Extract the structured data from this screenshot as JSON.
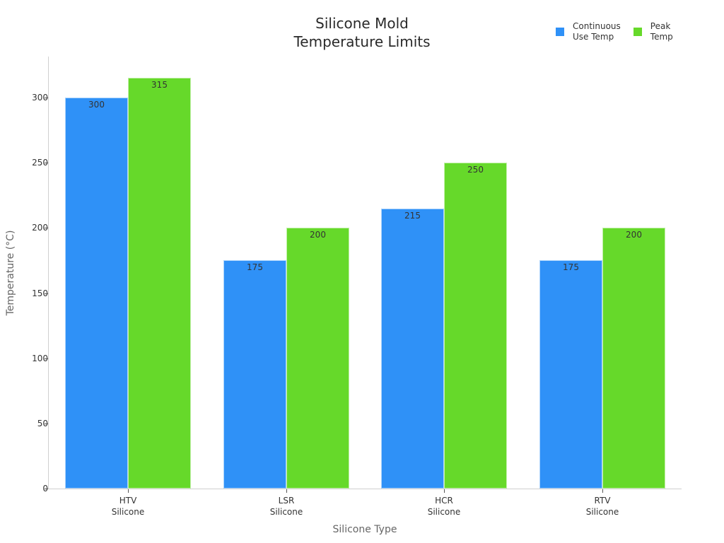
{
  "chart_data": {
    "type": "bar",
    "title": "Silicone Mold\nTemperature Limits",
    "title_lines": [
      "Silicone Mold",
      "Temperature Limits"
    ],
    "xlabel": "Silicone Type",
    "ylabel": "Temperature (°C)",
    "categories": [
      "HTV\nSilicone",
      "LSR\nSilicone",
      "HCR\nSilicone",
      "RTV\nSilicone"
    ],
    "series": [
      {
        "name": "Continuous\nUse Temp",
        "color": "#2f91f7",
        "values": [
          300,
          175,
          215,
          175
        ]
      },
      {
        "name": "Peak\nTemp",
        "color": "#66d92a",
        "values": [
          315,
          200,
          250,
          200
        ]
      }
    ],
    "yticks": [
      0,
      50,
      100,
      150,
      200,
      250,
      300
    ],
    "ylim": [
      0,
      332
    ],
    "grid": false,
    "legend_position": "top-right",
    "data_labels": true
  }
}
